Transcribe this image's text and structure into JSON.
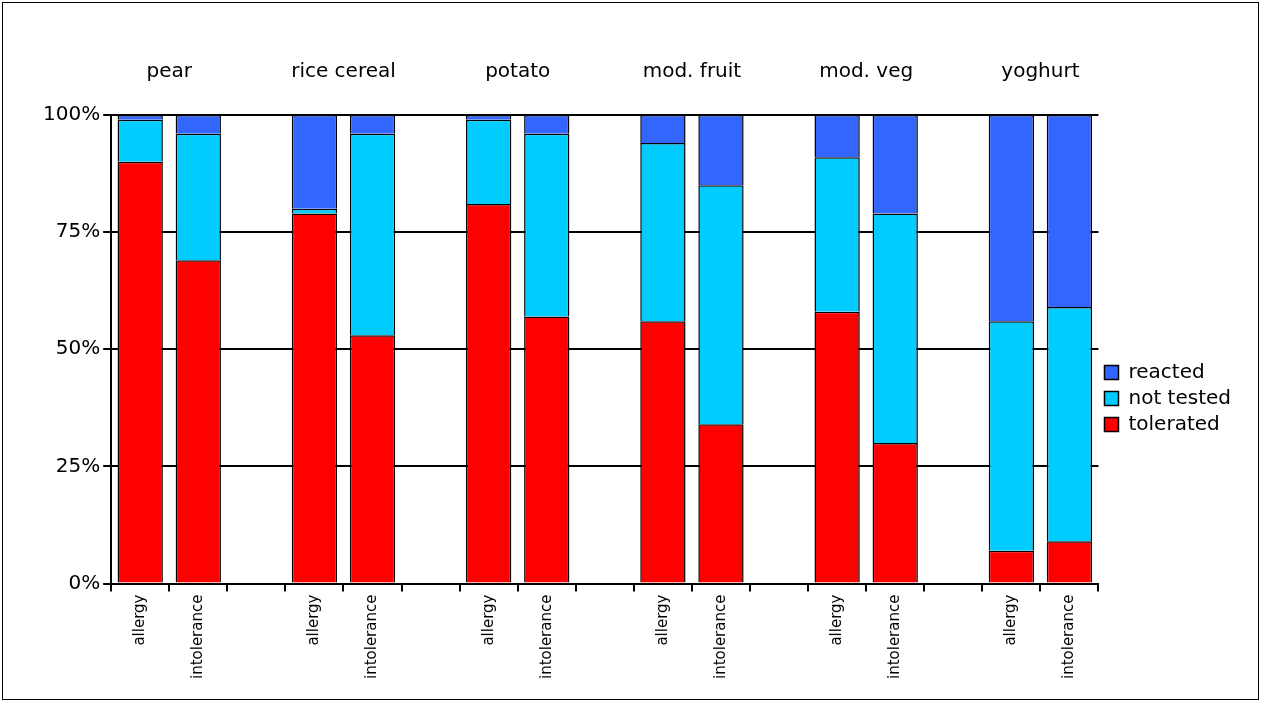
{
  "chart_data": {
    "type": "bar",
    "stacked": true,
    "categories": [
      "allergy",
      "intolerance",
      null,
      "allergy",
      "intolerance",
      null,
      "allergy",
      "intolerance",
      null,
      "allergy",
      "intolerance",
      null,
      "allergy",
      "intolerance",
      null,
      "allergy",
      "intolerance"
    ],
    "series": [
      {
        "name": "tolerated",
        "color": "#ff0000",
        "values": [
          90,
          69,
          null,
          79,
          53,
          null,
          81,
          57,
          null,
          56,
          34,
          null,
          58,
          30,
          null,
          7,
          9
        ]
      },
      {
        "name": "not tested",
        "color": "#00ccff",
        "values": [
          9,
          27,
          null,
          1,
          43,
          null,
          18,
          39,
          null,
          38,
          51,
          null,
          33,
          49,
          null,
          49,
          50
        ]
      },
      {
        "name": "reacted",
        "color": "#3366ff",
        "values": [
          1,
          4,
          null,
          20,
          4,
          null,
          1,
          4,
          null,
          6,
          15,
          null,
          9,
          21,
          null,
          44,
          41
        ]
      }
    ],
    "ylim": [
      0,
      100
    ],
    "yticks": [
      {
        "value": 0,
        "label": "0%"
      },
      {
        "value": 25,
        "label": "25%"
      },
      {
        "value": 50,
        "label": "50%"
      },
      {
        "value": 75,
        "label": "75%"
      },
      {
        "value": 100,
        "label": "100%"
      }
    ],
    "grid": "y",
    "legend": "right",
    "annotations": [
      "pear",
      "rice cereal",
      "potato",
      "mod. fruit",
      "mod. veg",
      "yoghurt"
    ]
  }
}
